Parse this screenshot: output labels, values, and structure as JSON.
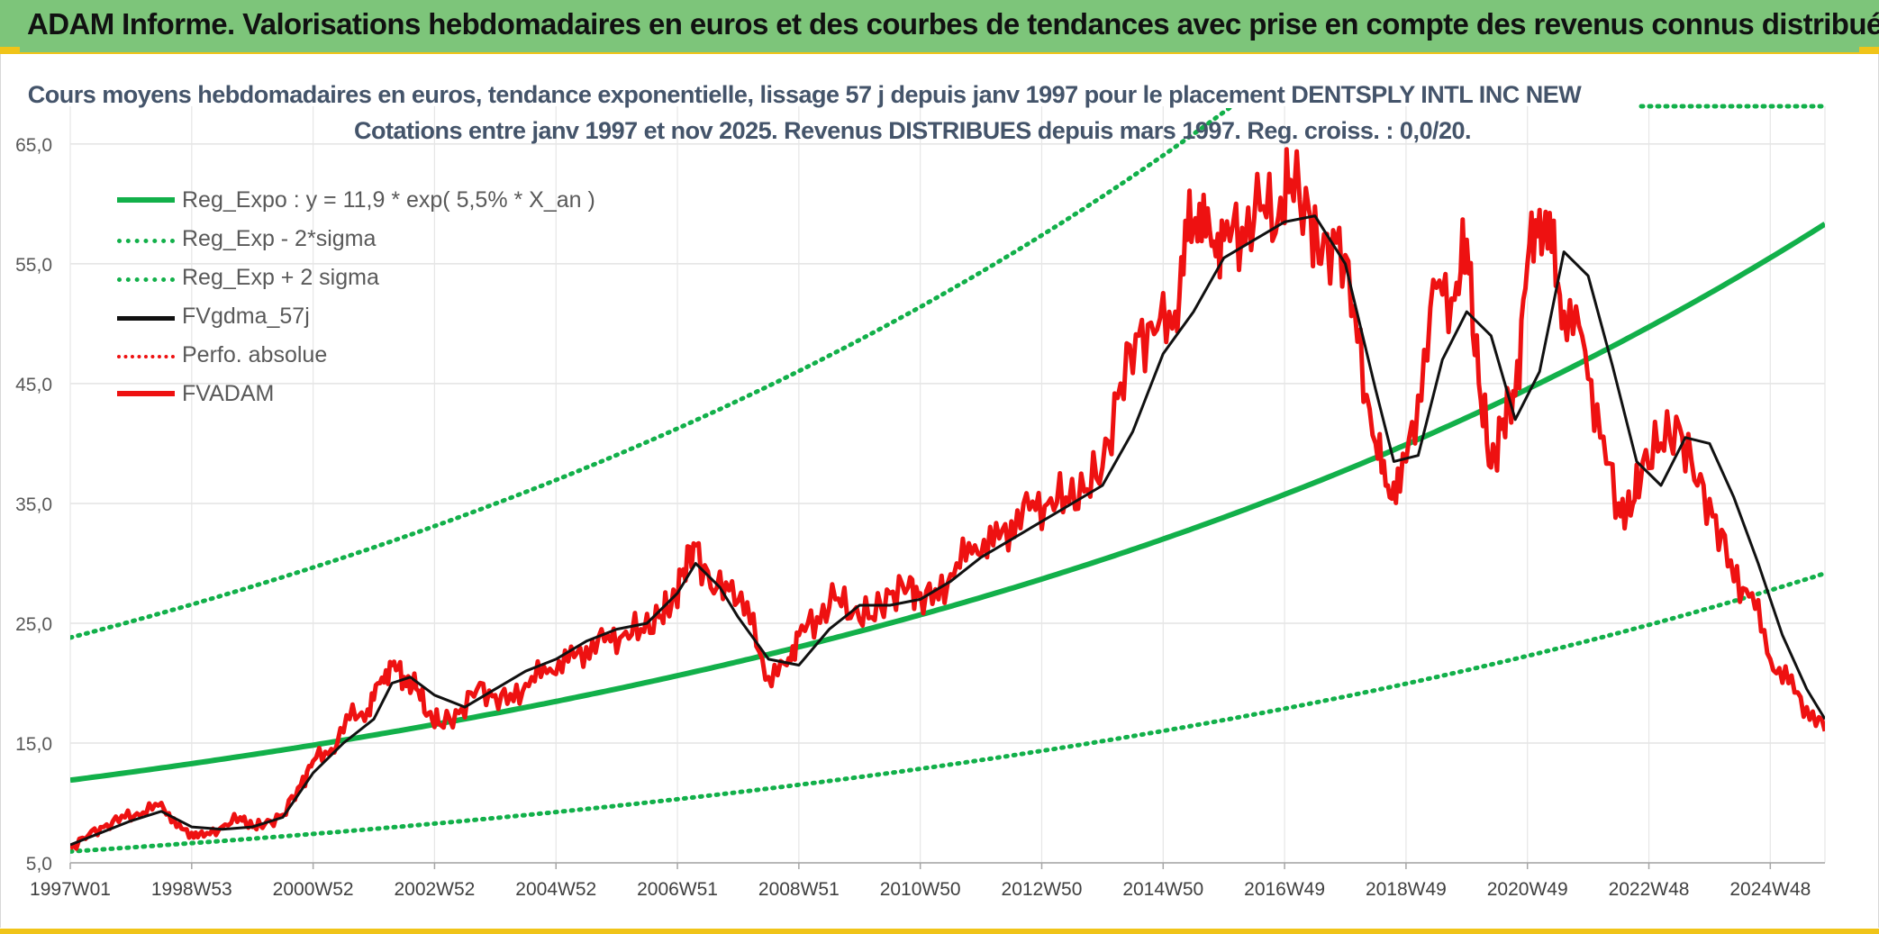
{
  "header": {
    "title": "ADAM Informe. Valorisations hebdomadaires en euros et des courbes de tendances avec prise en compte des revenus connus distribués"
  },
  "colors": {
    "header_bg": "#7dc57a",
    "accent_yellow": "#f0c419",
    "reg_green": "#12b04a",
    "fvadam_red": "#ee1111",
    "gdma_black": "#111111",
    "title_text": "#44546a"
  },
  "chart_data": {
    "type": "line",
    "title_line1": "Cours moyens hebdomadaires en euros, tendance exponentielle, lissage 57 j depuis janv 1997 pour le placement DENTSPLY INTL INC NEW",
    "title_line2": "Cotations entre janv 1997 et nov 2025. Revenus DISTRIBUES depuis mars 1997. Reg. croiss. : 0,0/20.",
    "x_range": [
      1997.0,
      2025.9
    ],
    "ylim": [
      5,
      68
    ],
    "y_ticks": [
      "5,0",
      "15,0",
      "25,0",
      "35,0",
      "45,0",
      "55,0",
      "65,0"
    ],
    "y_tick_values": [
      5,
      15,
      25,
      35,
      45,
      55,
      65
    ],
    "x_tick_labels": [
      "1997W01",
      "1998W53",
      "2000W52",
      "2002W52",
      "2004W52",
      "2006W51",
      "2008W51",
      "2010W50",
      "2012W50",
      "2014W50",
      "2016W49",
      "2018W49",
      "2020W49",
      "2022W48",
      "2024W48"
    ],
    "x_tick_values": [
      1997.0,
      1999.0,
      2001.0,
      2003.0,
      2005.0,
      2007.0,
      2009.0,
      2011.0,
      2013.0,
      2015.0,
      2017.0,
      2019.0,
      2021.0,
      2023.0,
      2025.0
    ],
    "legend": [
      {
        "label": "Reg_Expo : y = 11,9 * exp( 5,5% *  X_an )",
        "color": "#12b04a",
        "style": "solid-thick"
      },
      {
        "label": "Reg_Exp - 2*sigma",
        "color": "#12b04a",
        "style": "dotted"
      },
      {
        "label": "Reg_Exp + 2 sigma",
        "color": "#12b04a",
        "style": "dotted"
      },
      {
        "label": "FVgdma_57j",
        "color": "#111111",
        "style": "solid"
      },
      {
        "label": "Perfo. absolue",
        "color": "#ee1111",
        "style": "dotted"
      },
      {
        "label": "FVADAM",
        "color": "#ee1111",
        "style": "solid-thick"
      }
    ],
    "regression": {
      "a": 11.9,
      "rate": 0.055,
      "lower_factor": 0.5,
      "upper_factor": 2.0
    },
    "series": [
      {
        "name": "FVADAM",
        "x": [
          1997.0,
          1997.3,
          1997.6,
          1997.9,
          1998.2,
          1998.5,
          1998.75,
          1999.0,
          1999.2,
          1999.5,
          1999.8,
          2000.0,
          2000.2,
          2000.5,
          2000.8,
          2001.0,
          2001.3,
          2001.6,
          2001.9,
          2002.1,
          2002.3,
          2002.5,
          2002.7,
          2002.9,
          2003.1,
          2003.4,
          2003.7,
          2004.0,
          2004.3,
          2004.6,
          2004.9,
          2005.2,
          2005.5,
          2005.8,
          2006.1,
          2006.4,
          2006.7,
          2006.9,
          2007.1,
          2007.3,
          2007.6,
          2007.9,
          2008.2,
          2008.5,
          2008.8,
          2009.0,
          2009.3,
          2009.6,
          2009.9,
          2010.2,
          2010.5,
          2010.8,
          2011.0,
          2011.3,
          2011.6,
          2011.9,
          2012.2,
          2012.5,
          2012.8,
          2013.1,
          2013.4,
          2013.7,
          2014.0,
          2014.3,
          2014.6,
          2014.9,
          2015.2,
          2015.4,
          2015.6,
          2015.8,
          2016.0,
          2016.3,
          2016.6,
          2016.9,
          2017.1,
          2017.4,
          2017.6,
          2017.9,
          2018.2,
          2018.5,
          2018.7,
          2018.9,
          2019.2,
          2019.5,
          2019.8,
          2020.0,
          2020.2,
          2020.4,
          2020.6,
          2020.8,
          2021.0,
          2021.2,
          2021.4,
          2021.6,
          2021.9,
          2022.2,
          2022.5,
          2022.7,
          2022.9,
          2023.2,
          2023.5,
          2023.8,
          2024.1,
          2024.4,
          2024.7,
          2025.0,
          2025.3,
          2025.6,
          2025.9
        ],
        "values": [
          6.2,
          7.3,
          8.2,
          8.8,
          9.2,
          10.0,
          8.0,
          7.5,
          7.2,
          8.0,
          8.8,
          8.0,
          8.2,
          9.0,
          11.5,
          13.5,
          14.5,
          17.0,
          17.8,
          20.0,
          21.5,
          20.5,
          19.5,
          17.5,
          16.5,
          17.5,
          19.5,
          19.0,
          18.5,
          20.5,
          21.2,
          21.8,
          23.0,
          23.5,
          24.0,
          24.5,
          25.5,
          26.5,
          29.5,
          31.5,
          27.5,
          28.5,
          25.0,
          20.5,
          21.5,
          24.0,
          25.5,
          27.0,
          26.0,
          25.5,
          27.5,
          28.0,
          27.5,
          27.0,
          30.0,
          31.5,
          31.5,
          33.5,
          34.5,
          35.0,
          35.5,
          36.0,
          38.0,
          45.0,
          49.0,
          49.5,
          51.0,
          57.0,
          60.0,
          56.5,
          57.0,
          58.0,
          59.5,
          59.0,
          62.0,
          59.5,
          55.0,
          58.0,
          48.5,
          40.0,
          36.5,
          36.0,
          44.0,
          53.0,
          52.0,
          57.0,
          45.0,
          38.0,
          42.0,
          44.0,
          55.0,
          59.5,
          56.0,
          51.0,
          49.0,
          40.5,
          35.0,
          34.0,
          38.5,
          40.0,
          41.5,
          36.5,
          34.0,
          28.5,
          27.5,
          22.0,
          20.0,
          18.0,
          16.0
        ]
      },
      {
        "name": "FVgdma_57j",
        "x": [
          1997.0,
          1997.5,
          1998.0,
          1998.5,
          1999.0,
          1999.5,
          2000.0,
          2000.5,
          2001.0,
          2001.5,
          2002.0,
          2002.3,
          2002.6,
          2003.0,
          2003.5,
          2004.0,
          2004.5,
          2005.0,
          2005.5,
          2006.0,
          2006.5,
          2007.0,
          2007.3,
          2007.7,
          2008.0,
          2008.5,
          2009.0,
          2009.5,
          2010.0,
          2010.5,
          2011.0,
          2011.5,
          2012.0,
          2012.5,
          2013.0,
          2013.5,
          2014.0,
          2014.5,
          2015.0,
          2015.5,
          2016.0,
          2016.5,
          2017.0,
          2017.5,
          2018.0,
          2018.5,
          2018.8,
          2019.2,
          2019.6,
          2020.0,
          2020.4,
          2020.8,
          2021.2,
          2021.6,
          2022.0,
          2022.4,
          2022.8,
          2023.2,
          2023.6,
          2024.0,
          2024.4,
          2024.8,
          2025.2,
          2025.6,
          2025.9
        ],
        "values": [
          6.5,
          7.5,
          8.5,
          9.3,
          8.0,
          7.8,
          8.0,
          8.8,
          12.5,
          15.0,
          17.0,
          20.0,
          20.5,
          19.0,
          18.0,
          19.5,
          21.0,
          22.0,
          23.5,
          24.5,
          25.0,
          27.5,
          30.0,
          28.0,
          25.5,
          22.0,
          21.5,
          24.5,
          26.5,
          26.5,
          27.0,
          28.5,
          30.5,
          32.0,
          33.5,
          35.0,
          36.5,
          41.0,
          47.5,
          51.0,
          55.5,
          57.0,
          58.5,
          59.0,
          55.0,
          44.5,
          38.5,
          39.0,
          47.0,
          51.0,
          49.0,
          42.0,
          46.0,
          56.0,
          54.0,
          46.5,
          38.5,
          36.5,
          40.5,
          40.0,
          35.5,
          30.0,
          24.0,
          19.5,
          17.0
        ]
      }
    ]
  }
}
